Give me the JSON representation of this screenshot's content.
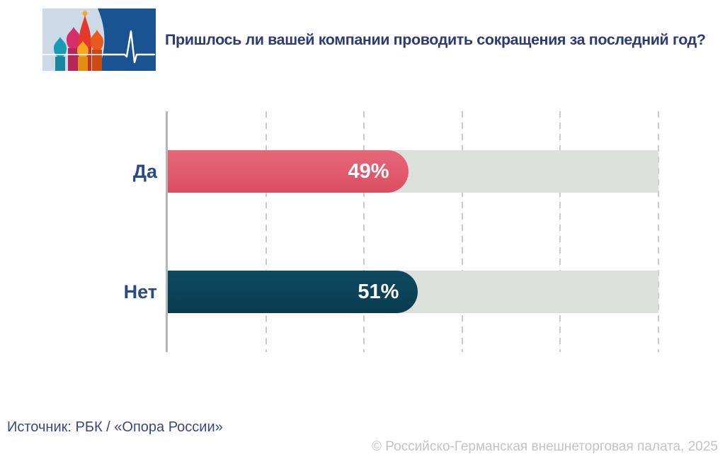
{
  "header": {
    "title": "Пришлось ли вашей компании проводить сокращения за последний год?",
    "logo_name": "ahk-russland-cathedral-pulse-logo"
  },
  "footer": {
    "source": "Источник: РБК / «Опора России»",
    "copyright": "© Российско-Германская внешнеторговая палата, 2025"
  },
  "colors": {
    "title_navy": "#2e3a72",
    "label_navy": "#2a4a85",
    "bar_yes_top": "#e56879",
    "bar_yes_bottom": "#dc4e61",
    "bar_no_top": "#0e4a60",
    "bar_no_bottom": "#0a3c50",
    "track_gray": "#dce0da",
    "gridline_gray": "#c9ccc9",
    "axis_gray": "#b3b6b3",
    "logo_dark_blue": "#1a5391",
    "logo_light_blue": "#ccd9e6"
  },
  "chart_data": {
    "type": "bar",
    "orientation": "horizontal",
    "title": "Пришлось ли вашей компании проводить сокращения за последний год?",
    "categories": [
      "Да",
      "Нет"
    ],
    "values": [
      49,
      51
    ],
    "value_labels": [
      "49%",
      "51%"
    ],
    "bar_gradients": [
      [
        "#e56879",
        "#dc4e61"
      ],
      [
        "#0e4a60",
        "#0a3c50"
      ]
    ],
    "xlim": [
      0,
      100
    ],
    "gridline_step": 20,
    "grid": true,
    "legend": false,
    "xlabel": "",
    "ylabel": ""
  }
}
